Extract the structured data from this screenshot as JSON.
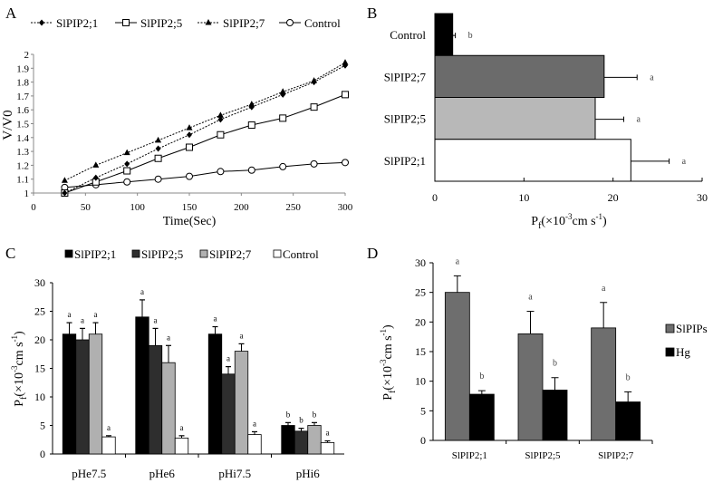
{
  "chart_data": [
    {
      "panel": "A",
      "type": "line",
      "title": "",
      "xlabel": "Time(Sec)",
      "ylabel": "V/V0",
      "xlim": [
        0,
        300
      ],
      "ylim": [
        1,
        2
      ],
      "xticks": [
        "0",
        "50",
        "100",
        "150",
        "200",
        "250",
        "300"
      ],
      "yticks": [
        "1",
        "1.1",
        "1.2",
        "1.3",
        "1.4",
        "1.5",
        "1.6",
        "1.7",
        "1.8",
        "1.9",
        "2"
      ],
      "legend_position": "top",
      "x": [
        30,
        60,
        90,
        120,
        150,
        180,
        210,
        240,
        270,
        300
      ],
      "series": [
        {
          "name": "SlPIP2;1",
          "marker": "diamond",
          "line": "dashed",
          "values": [
            1.0,
            1.11,
            1.21,
            1.32,
            1.42,
            1.53,
            1.62,
            1.71,
            1.8,
            1.92
          ]
        },
        {
          "name": "SlPIP2;5",
          "marker": "square-open",
          "line": "solid",
          "values": [
            1.0,
            1.08,
            1.16,
            1.25,
            1.33,
            1.42,
            1.49,
            1.54,
            1.62,
            1.71
          ]
        },
        {
          "name": "SlPIP2;7",
          "marker": "triangle",
          "line": "dashed",
          "values": [
            1.09,
            1.2,
            1.29,
            1.38,
            1.47,
            1.56,
            1.64,
            1.73,
            1.81,
            1.94
          ]
        },
        {
          "name": "Control",
          "marker": "circle-open",
          "line": "solid",
          "values": [
            1.04,
            1.06,
            1.08,
            1.1,
            1.12,
            1.155,
            1.165,
            1.19,
            1.21,
            1.22
          ]
        }
      ]
    },
    {
      "panel": "B",
      "type": "bar",
      "orientation": "horizontal",
      "xlabel": "Pf(×10⁻³cm s⁻¹)",
      "xlabel_main": "P",
      "xlabel_sub": "f",
      "xlabel_rest": "(×10",
      "xlabel_sup": "-3",
      "xlabel_rest2": "cm s",
      "xlabel_sup2": "-1",
      "xlabel_end": ")",
      "xlim": [
        0,
        30
      ],
      "xticks": [
        "0",
        "10",
        "20",
        "30"
      ],
      "categories": [
        "Control",
        "SlPIP2;7",
        "SlPIP2;5",
        "SlPIP2;1"
      ],
      "values": [
        2,
        19,
        18,
        22
      ],
      "error_upper": [
        2.3,
        22.7,
        21.2,
        26.3
      ],
      "significance": [
        "b",
        "a",
        "a",
        "a"
      ],
      "colors": [
        "#000000",
        "#6b6b6b",
        "#b8b8b8",
        "#ffffff"
      ]
    },
    {
      "panel": "C",
      "type": "bar",
      "orientation": "vertical",
      "ylabel_main": "P",
      "ylabel_sub": "f",
      "ylabel_rest": "(×10",
      "ylabel_sup": "-3",
      "ylabel_rest2": "cm s",
      "ylabel_sup2": "-1",
      "ylabel_end": ")",
      "ylim": [
        0,
        30
      ],
      "yticks": [
        "0",
        "5",
        "10",
        "15",
        "20",
        "25",
        "30"
      ],
      "legend_position": "top",
      "categories": [
        "pHe7.5",
        "pHe6",
        "pHi7.5",
        "pHi6"
      ],
      "series": [
        {
          "name": "SlPIP2;1",
          "color": "#000000",
          "values": [
            21,
            24,
            21,
            5
          ],
          "error_upper": [
            23,
            27,
            22.3,
            5.5
          ],
          "significance": [
            "a",
            "a",
            "a",
            "b"
          ]
        },
        {
          "name": "SlPIP2;5",
          "color": "#2e2e2e",
          "values": [
            20,
            19,
            14,
            4
          ],
          "error_upper": [
            22,
            22,
            15.3,
            4.5
          ],
          "significance": [
            "a",
            "a",
            "a",
            "b"
          ]
        },
        {
          "name": "SlPIP2;7",
          "color": "#b0b0b0",
          "values": [
            21,
            16,
            18,
            5
          ],
          "error_upper": [
            23,
            19,
            19.3,
            5.5
          ],
          "significance": [
            "a",
            "a",
            "a",
            "b"
          ]
        },
        {
          "name": "Control",
          "color": "#ffffff",
          "values": [
            3,
            2.8,
            3.4,
            2
          ],
          "error_upper": [
            3.2,
            3.2,
            3.9,
            2.3
          ],
          "significance": [
            "a",
            "a",
            "a",
            "a"
          ]
        }
      ]
    },
    {
      "panel": "D",
      "type": "bar",
      "orientation": "vertical",
      "ylabel_main": "P",
      "ylabel_sub": "f",
      "ylabel_rest": "(×10",
      "ylabel_sup": "-3",
      "ylabel_rest2": "cm s",
      "ylabel_sup2": "-1",
      "ylabel_end": ")",
      "ylim": [
        0,
        30
      ],
      "yticks": [
        "0",
        "5",
        "10",
        "15",
        "20",
        "25",
        "30"
      ],
      "legend_position": "right",
      "categories": [
        "SlPIP2;1",
        "SlPIP2;5",
        "SlPIP2;7"
      ],
      "series": [
        {
          "name": "SlPIPs",
          "color": "#6e6e6e",
          "values": [
            25,
            18,
            19
          ],
          "error_upper": [
            27.8,
            21.8,
            23.3
          ],
          "significance": [
            "a",
            "a",
            "a"
          ]
        },
        {
          "name": "Hg",
          "color": "#000000",
          "values": [
            7.8,
            8.5,
            6.5
          ],
          "error_upper": [
            8.4,
            10.6,
            8.2
          ],
          "significance": [
            "b",
            "b",
            "b"
          ]
        }
      ]
    }
  ]
}
